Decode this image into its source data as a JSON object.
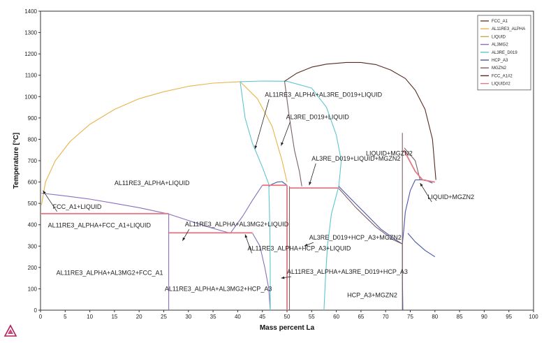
{
  "chart_data": {
    "type": "line",
    "title": "",
    "xlabel": "Mass percent La",
    "ylabel": "Temperature [°C]",
    "xlim": [
      0,
      100
    ],
    "ylim": [
      0,
      1400
    ],
    "xticks": [
      0,
      5,
      10,
      15,
      20,
      25,
      30,
      35,
      40,
      45,
      50,
      55,
      60,
      65,
      70,
      75,
      80,
      85,
      90,
      95,
      100
    ],
    "yticks": [
      0,
      100,
      200,
      300,
      400,
      500,
      600,
      700,
      800,
      900,
      1000,
      1100,
      1200,
      1300,
      1400
    ],
    "grid": false,
    "legend_position": "top-right",
    "series": [
      {
        "name": "FCC_A1",
        "color": "#6b3f2f",
        "segments": []
      },
      {
        "name": "AL11RE3_ALPHA",
        "color": "#e8b44a",
        "segments": [
          [
            [
              0.2,
              492
            ],
            [
              1,
              600
            ],
            [
              3,
              700
            ],
            [
              6,
              790
            ],
            [
              10,
              870
            ],
            [
              15,
              940
            ],
            [
              20,
              990
            ],
            [
              25,
              1023
            ],
            [
              30,
              1048
            ],
            [
              35,
              1063
            ],
            [
              40.5,
              1070
            ]
          ],
          [
            [
              40.5,
              1070
            ],
            [
              44,
              990
            ],
            [
              47,
              860
            ],
            [
              49,
              700
            ],
            [
              50,
              600
            ]
          ]
        ]
      },
      {
        "name": "LIQUID",
        "color": "#c9a84a",
        "segments": []
      },
      {
        "name": "AL3MG2",
        "color": "#8a6fc0",
        "segments": [
          [
            [
              0.2,
              548
            ],
            [
              5,
              535
            ],
            [
              10,
              520
            ],
            [
              15,
              500
            ],
            [
              20,
              480
            ],
            [
              23,
              465
            ],
            [
              26,
              450
            ]
          ],
          [
            [
              26,
              450
            ],
            [
              30,
              420
            ],
            [
              34,
              390
            ],
            [
              38.5,
              360
            ]
          ],
          [
            [
              38.5,
              360
            ],
            [
              41,
              440
            ],
            [
              43,
              515
            ],
            [
              45,
              585
            ]
          ],
          [
            [
              43,
              360
            ],
            [
              44.5,
              300
            ],
            [
              45.5,
              200
            ],
            [
              46.3,
              100
            ],
            [
              46.6,
              0
            ]
          ],
          [
            [
              26,
              450
            ],
            [
              26,
              0
            ]
          ]
        ]
      },
      {
        "name": "AL3RE_D019",
        "color": "#5ec5d0",
        "segments": [
          [
            [
              40.5,
              1070
            ],
            [
              41.5,
              900
            ],
            [
              43,
              780
            ],
            [
              45,
              670
            ],
            [
              46.3,
              590
            ]
          ],
          [
            [
              46.3,
              590
            ],
            [
              46.5,
              400
            ],
            [
              46.6,
              200
            ],
            [
              46.6,
              0
            ]
          ],
          [
            [
              50,
              1072
            ],
            [
              55,
              1040
            ],
            [
              58,
              950
            ],
            [
              60,
              820
            ],
            [
              61,
              700
            ],
            [
              60.5,
              580
            ]
          ],
          [
            [
              60.5,
              580
            ],
            [
              59,
              450
            ],
            [
              58.2,
              300
            ],
            [
              57.8,
              150
            ],
            [
              57.5,
              0
            ]
          ],
          [
            [
              40.5,
              1070
            ],
            [
              45,
              1073
            ],
            [
              50,
              1072
            ]
          ]
        ]
      },
      {
        "name": "HCP_A3",
        "color": "#4a55a8",
        "segments": [
          [
            [
              46.3,
              580
            ],
            [
              47,
              590
            ],
            [
              48,
              600
            ],
            [
              49,
              602
            ],
            [
              50,
              585
            ]
          ],
          [
            [
              60.5,
              580
            ],
            [
              63,
              520
            ],
            [
              66,
              450
            ],
            [
              69,
              380
            ],
            [
              72,
              330
            ],
            [
              73.4,
              310
            ]
          ],
          [
            [
              73.4,
              310
            ],
            [
              73.7,
              380
            ],
            [
              74,
              460
            ],
            [
              75,
              560
            ],
            [
              76,
              610
            ]
          ],
          [
            [
              73.4,
              310
            ],
            [
              73.4,
              160
            ],
            [
              73.5,
              0
            ]
          ],
          [
            [
              74.5,
              360
            ],
            [
              76,
              320
            ],
            [
              78,
              280
            ],
            [
              80,
              250
            ]
          ],
          [
            [
              76,
              610
            ],
            [
              78,
              610
            ],
            [
              79.5,
              595
            ]
          ]
        ]
      },
      {
        "name": "MGZN2",
        "color": "#7d6060",
        "segments": [
          [
            [
              49.5,
              1072
            ],
            [
              50.5,
              900
            ],
            [
              51.5,
              750
            ],
            [
              52.5,
              650
            ],
            [
              53,
              580
            ]
          ],
          [
            [
              50.5,
              580
            ],
            [
              50.5,
              200
            ],
            [
              50.5,
              0
            ]
          ],
          [
            [
              60.5,
              570
            ],
            [
              64,
              480
            ],
            [
              68,
              390
            ],
            [
              71.5,
              330
            ],
            [
              73.4,
              310
            ]
          ],
          [
            [
              73.4,
              830
            ],
            [
              73.4,
              0
            ]
          ],
          [
            [
              73.8,
              760
            ],
            [
              76,
              700
            ],
            [
              77,
              610
            ]
          ]
        ]
      },
      {
        "name": "FCC_A1#2",
        "color": "#5a2a1f",
        "segments": [
          [
            [
              49.5,
              1072
            ],
            [
              52,
              1110
            ],
            [
              55,
              1138
            ],
            [
              58,
              1152
            ],
            [
              62,
              1160
            ],
            [
              65,
              1160
            ],
            [
              68,
              1150
            ],
            [
              71,
              1125
            ],
            [
              74,
              1085
            ],
            [
              76,
              1030
            ],
            [
              78,
              940
            ],
            [
              79.5,
              800
            ],
            [
              80.2,
              610
            ]
          ]
        ]
      },
      {
        "name": "LIQUID#2",
        "color": "#e07a85",
        "segments": [
          [
            [
              0,
              452
            ],
            [
              26,
              452
            ]
          ],
          [
            [
              26,
              362
            ],
            [
              43,
              362
            ]
          ],
          [
            [
              45,
              585
            ],
            [
              50,
              585
            ]
          ],
          [
            [
              50.5,
              572
            ],
            [
              60.5,
              572
            ]
          ],
          [
            [
              50,
              585
            ],
            [
              50,
              0
            ]
          ],
          [
            [
              73.7,
              750
            ],
            [
              76,
              650
            ],
            [
              77.5,
              610
            ],
            [
              80,
              600
            ]
          ]
        ]
      }
    ],
    "annotations": [
      {
        "text": "AL11RE3_ALPHA+AL3RE_D019+LIQUID",
        "x": 45.5,
        "y": 1000,
        "arrow_to": [
          43.5,
          755
        ]
      },
      {
        "text": "AL3RE_D019+LIQUID",
        "x": 49.8,
        "y": 895,
        "arrow_to": [
          48.8,
          770
        ]
      },
      {
        "text": "LIQUID+MGZN2",
        "x": 66,
        "y": 725,
        "arrow_to": null
      },
      {
        "text": "AL11RE3_ALPHA+LIQUID",
        "x": 15,
        "y": 585,
        "arrow_to": null
      },
      {
        "text": "AL3RE_D019+LIQUID+MGZN2",
        "x": 55,
        "y": 700,
        "arrow_to": [
          54.5,
          585
        ]
      },
      {
        "text": "FCC_A1+LIQUID",
        "x": 2.5,
        "y": 475,
        "arrow_to": [
          0.5,
          560
        ]
      },
      {
        "text": "LIQUID+MGZN2",
        "x": 78.5,
        "y": 520,
        "arrow_to": [
          77,
          595
        ]
      },
      {
        "text": "AL11RE3_ALPHA+FCC_A1+LIQUID",
        "x": 1.5,
        "y": 387,
        "arrow_to": null
      },
      {
        "text": "AL11RE3_ALPHA+AL3MG2+LIQUID",
        "x": 29.3,
        "y": 392,
        "arrow_to": [
          28.8,
          325
        ]
      },
      {
        "text": "AL3RE_D019+HCP_A3+MGZN2",
        "x": 54.5,
        "y": 330,
        "arrow_to": [
          53.5,
          300
        ]
      },
      {
        "text": "AL11RE3_ALPHA+HCP_A3+LIQUID",
        "x": 42,
        "y": 280,
        "arrow_to": [
          41.5,
          355
        ]
      },
      {
        "text": "AL11RE3_ALPHA+AL3RE_D019+HCP_A3",
        "x": 50,
        "y": 170,
        "arrow_to": [
          48.8,
          150
        ]
      },
      {
        "text": "AL11RE3_ALPHA+AL3MG2+FCC_A1",
        "x": 3.2,
        "y": 165,
        "arrow_to": null
      },
      {
        "text": "AL11RE3_ALPHA+AL3MG2+HCP_A3",
        "x": 25.2,
        "y": 90,
        "arrow_to": null
      },
      {
        "text": "HCP_A3+MGZN2",
        "x": 62.2,
        "y": 60,
        "arrow_to": null
      }
    ]
  }
}
